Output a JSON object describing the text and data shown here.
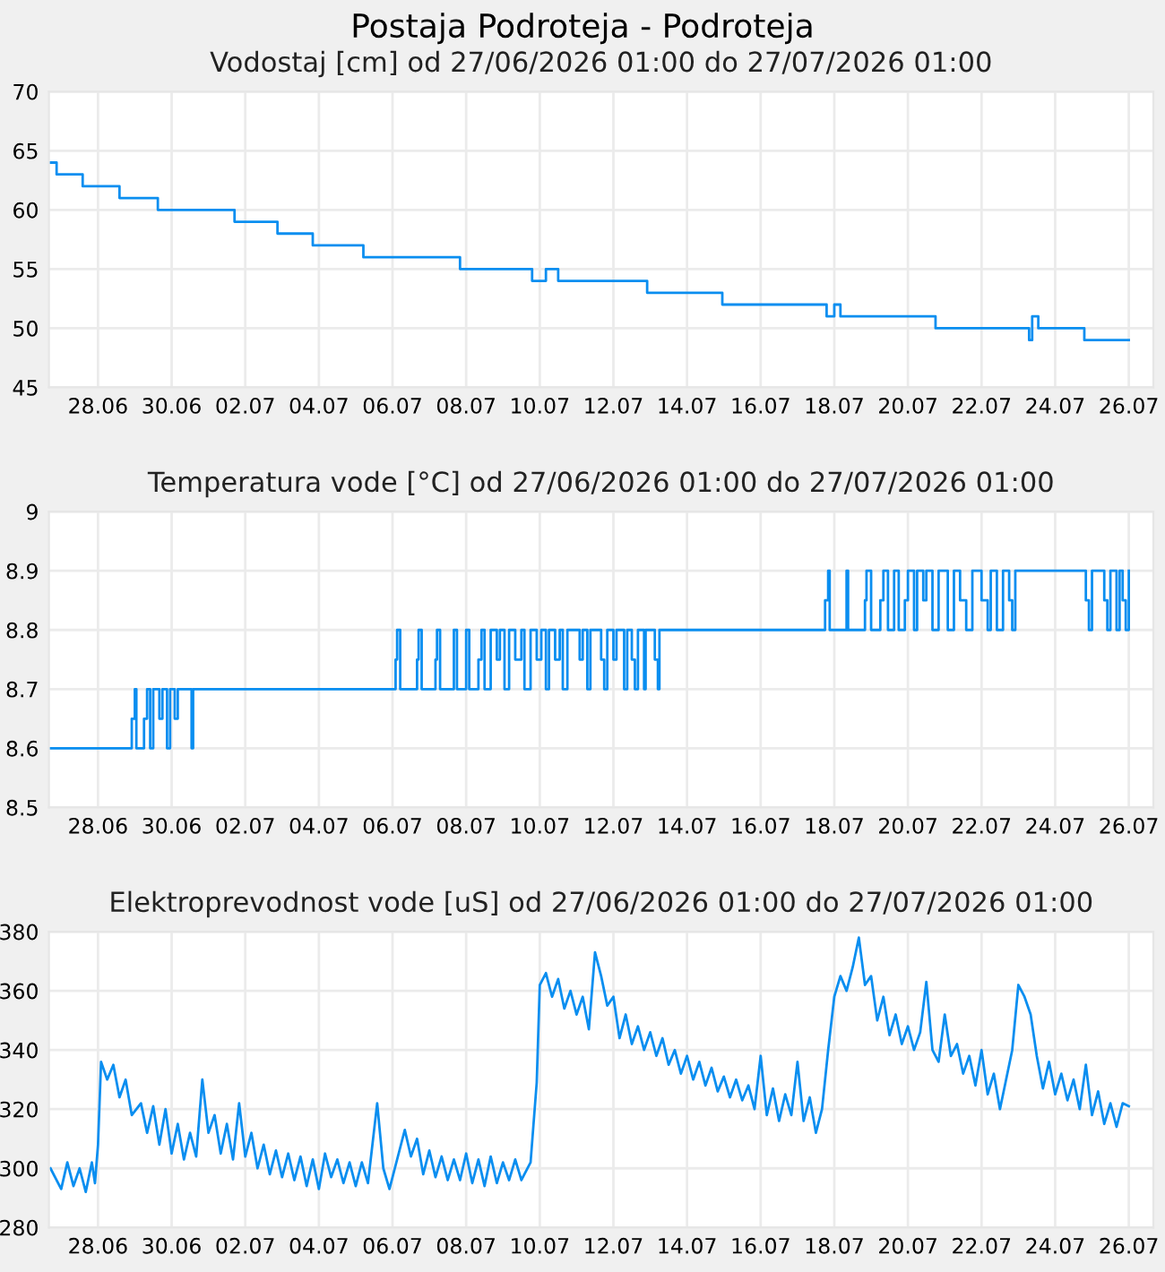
{
  "chart_data": [
    {
      "type": "step",
      "title": "Postaja Podroteja - Podroteja",
      "subtitle": "Vodostaj [cm] od 27/06/2026 01:00 do 27/07/2026 01:00",
      "grid": true,
      "xlim": [
        "2026-06-26T16:00",
        "2026-07-26T16:00"
      ],
      "ylim": [
        45,
        70
      ],
      "yticks": [
        45,
        50,
        55,
        60,
        65,
        70
      ],
      "xticks": [
        {
          "value": "2026-06-28",
          "label": "28.06"
        },
        {
          "value": "2026-06-30",
          "label": "30.06"
        },
        {
          "value": "2026-07-02",
          "label": "02.07"
        },
        {
          "value": "2026-07-04",
          "label": "04.07"
        },
        {
          "value": "2026-07-06",
          "label": "06.07"
        },
        {
          "value": "2026-07-08",
          "label": "08.07"
        },
        {
          "value": "2026-07-10",
          "label": "10.07"
        },
        {
          "value": "2026-07-12",
          "label": "12.07"
        },
        {
          "value": "2026-07-14",
          "label": "14.07"
        },
        {
          "value": "2026-07-16",
          "label": "16.07"
        },
        {
          "value": "2026-07-18",
          "label": "18.07"
        },
        {
          "value": "2026-07-20",
          "label": "20.07"
        },
        {
          "value": "2026-07-22",
          "label": "22.07"
        },
        {
          "value": "2026-07-24",
          "label": "24.07"
        },
        {
          "value": "2026-07-26",
          "label": "26.07"
        }
      ],
      "series": [
        {
          "color": "#0a8ef0",
          "x": [
            "2026-06-26T17:00",
            "2026-06-26T21:00",
            "2026-06-27T14:00",
            "2026-06-28T14:00",
            "2026-06-29T15:00",
            "2026-07-01T17:00",
            "2026-07-02T21:00",
            "2026-07-03T20:00",
            "2026-07-05T05:00",
            "2026-07-07T20:00",
            "2026-07-09T19:00",
            "2026-07-10T04:00",
            "2026-07-10T12:00",
            "2026-07-12T22:00",
            "2026-07-14T23:00",
            "2026-07-17T19:00",
            "2026-07-18T00:00",
            "2026-07-18T04:00",
            "2026-07-20T18:00",
            "2026-07-23T07:00",
            "2026-07-23T09:00",
            "2026-07-23T13:00",
            "2026-07-24T19:00",
            "2026-07-26T00:00"
          ],
          "values": [
            64,
            63,
            62,
            61,
            60,
            59,
            58,
            57,
            56,
            55,
            54,
            55,
            54,
            53,
            52,
            51,
            52,
            51,
            50,
            49,
            51,
            50,
            49,
            49
          ]
        }
      ]
    },
    {
      "type": "step",
      "subtitle": "Temperatura vode [°C] od 27/06/2026 01:00 do 27/07/2026 01:00",
      "grid": true,
      "xlim": [
        "2026-06-26T16:00",
        "2026-07-26T16:00"
      ],
      "ylim": [
        8.5,
        9
      ],
      "yticks": [
        8.5,
        8.6,
        8.7,
        8.8,
        8.9,
        {
          "value": 9,
          "label": "9"
        }
      ],
      "xticks": [
        {
          "value": "2026-06-28",
          "label": "28.06"
        },
        {
          "value": "2026-06-30",
          "label": "30.06"
        },
        {
          "value": "2026-07-02",
          "label": "02.07"
        },
        {
          "value": "2026-07-04",
          "label": "04.07"
        },
        {
          "value": "2026-07-06",
          "label": "06.07"
        },
        {
          "value": "2026-07-08",
          "label": "08.07"
        },
        {
          "value": "2026-07-10",
          "label": "10.07"
        },
        {
          "value": "2026-07-12",
          "label": "12.07"
        },
        {
          "value": "2026-07-14",
          "label": "14.07"
        },
        {
          "value": "2026-07-16",
          "label": "16.07"
        },
        {
          "value": "2026-07-18",
          "label": "18.07"
        },
        {
          "value": "2026-07-20",
          "label": "20.07"
        },
        {
          "value": "2026-07-22",
          "label": "22.07"
        },
        {
          "value": "2026-07-24",
          "label": "24.07"
        },
        {
          "value": "2026-07-26",
          "label": "26.07"
        }
      ],
      "series": [
        {
          "color": "#0a8ef0",
          "x": [
            "2026-06-26T17:00",
            "2026-06-28T22:00",
            "2026-06-29T00:00",
            "2026-06-29T01:00",
            "2026-06-29T06:00",
            "2026-06-29T08:00",
            "2026-06-29T10:00",
            "2026-06-29T12:00",
            "2026-06-29T16:00",
            "2026-06-29T18:00",
            "2026-06-29T21:00",
            "2026-06-29T23:00",
            "2026-06-30T02:00",
            "2026-06-30T04:00",
            "2026-06-30T13:00",
            "2026-06-30T14:00",
            "2026-07-06T02:00",
            "2026-07-06T03:00",
            "2026-07-06T05:00",
            "2026-07-06T16:00",
            "2026-07-06T17:00",
            "2026-07-06T19:00",
            "2026-07-07T04:00",
            "2026-07-07T05:00",
            "2026-07-07T07:00",
            "2026-07-07T16:00",
            "2026-07-07T18:00",
            "2026-07-08T00:00",
            "2026-07-08T02:00",
            "2026-07-08T08:00",
            "2026-07-08T10:00",
            "2026-07-08T12:00",
            "2026-07-08T16:00",
            "2026-07-08T20:00",
            "2026-07-08T22:00",
            "2026-07-09T01:00",
            "2026-07-09T04:00",
            "2026-07-09T08:00",
            "2026-07-09T12:00",
            "2026-07-09T14:00",
            "2026-07-09T18:00",
            "2026-07-09T22:00",
            "2026-07-10T01:00",
            "2026-07-10T04:00",
            "2026-07-10T06:00",
            "2026-07-10T10:00",
            "2026-07-10T13:00",
            "2026-07-10T15:00",
            "2026-07-10T18:00",
            "2026-07-11T02:00",
            "2026-07-11T04:00",
            "2026-07-11T07:00",
            "2026-07-11T09:00",
            "2026-07-11T16:00",
            "2026-07-11T18:00",
            "2026-07-11T20:00",
            "2026-07-12T00:00",
            "2026-07-12T02:00",
            "2026-07-12T07:00",
            "2026-07-12T09:00",
            "2026-07-12T12:00",
            "2026-07-12T14:00",
            "2026-07-12T16:00",
            "2026-07-12T20:00",
            "2026-07-12T21:00",
            "2026-07-13T03:00",
            "2026-07-13T05:00",
            "2026-07-13T06:00",
            "2026-07-17T18:00",
            "2026-07-17T20:00",
            "2026-07-17T21:00",
            "2026-07-18T08:00",
            "2026-07-18T09:00",
            "2026-07-18T20:00",
            "2026-07-18T21:00",
            "2026-07-19T00:00",
            "2026-07-19T06:00",
            "2026-07-19T08:00",
            "2026-07-19T11:00",
            "2026-07-19T15:00",
            "2026-07-19T18:00",
            "2026-07-19T22:00",
            "2026-07-20T00:00",
            "2026-07-20T04:00",
            "2026-07-20T06:00",
            "2026-07-20T10:00",
            "2026-07-20T12:00",
            "2026-07-20T16:00",
            "2026-07-20T20:00",
            "2026-07-21T02:00",
            "2026-07-21T06:00",
            "2026-07-21T10:00",
            "2026-07-21T14:00",
            "2026-07-21T18:00",
            "2026-07-22T00:00",
            "2026-07-22T04:00",
            "2026-07-22T06:00",
            "2026-07-22T10:00",
            "2026-07-22T14:00",
            "2026-07-22T18:00",
            "2026-07-22T20:00",
            "2026-07-22T22:00",
            "2026-07-24T20:00",
            "2026-07-24T22:00",
            "2026-07-25T00:00",
            "2026-07-25T08:00",
            "2026-07-25T10:00",
            "2026-07-25T12:00",
            "2026-07-25T16:00",
            "2026-07-25T18:00",
            "2026-07-25T20:00",
            "2026-07-25T22:00",
            "2026-07-26T00:00"
          ],
          "values": [
            8.6,
            8.65,
            8.7,
            8.6,
            8.65,
            8.7,
            8.6,
            8.7,
            8.65,
            8.7,
            8.6,
            8.7,
            8.65,
            8.7,
            8.6,
            8.7,
            8.75,
            8.8,
            8.7,
            8.75,
            8.8,
            8.7,
            8.75,
            8.8,
            8.7,
            8.8,
            8.7,
            8.8,
            8.7,
            8.75,
            8.8,
            8.7,
            8.8,
            8.75,
            8.8,
            8.7,
            8.8,
            8.75,
            8.8,
            8.7,
            8.8,
            8.75,
            8.8,
            8.7,
            8.8,
            8.75,
            8.8,
            8.7,
            8.8,
            8.75,
            8.8,
            8.7,
            8.8,
            8.75,
            8.7,
            8.8,
            8.75,
            8.8,
            8.7,
            8.8,
            8.75,
            8.7,
            8.8,
            8.7,
            8.8,
            8.75,
            8.7,
            8.8,
            8.85,
            8.9,
            8.8,
            8.9,
            8.8,
            8.85,
            8.9,
            8.8,
            8.85,
            8.9,
            8.8,
            8.9,
            8.8,
            8.85,
            8.9,
            8.8,
            8.9,
            8.85,
            8.9,
            8.8,
            8.9,
            8.8,
            8.9,
            8.85,
            8.8,
            8.9,
            8.85,
            8.8,
            8.9,
            8.8,
            8.9,
            8.85,
            8.8,
            8.9,
            8.85,
            8.8,
            8.9,
            8.85,
            8.8,
            8.9,
            8.8,
            8.9,
            8.85,
            8.8,
            8.9
          ]
        }
      ]
    },
    {
      "type": "line",
      "subtitle": "Elektroprevodnost vode [uS] od 27/06/2026 01:00 do 27/07/2026 01:00",
      "grid": true,
      "xlim": [
        "2026-06-26T16:00",
        "2026-07-26T16:00"
      ],
      "ylim": [
        280,
        380
      ],
      "yticks": [
        280,
        300,
        320,
        340,
        360,
        380
      ],
      "xticks": [
        {
          "value": "2026-06-28",
          "label": "28.06"
        },
        {
          "value": "2026-06-30",
          "label": "30.06"
        },
        {
          "value": "2026-07-02",
          "label": "02.07"
        },
        {
          "value": "2026-07-04",
          "label": "04.07"
        },
        {
          "value": "2026-07-06",
          "label": "06.07"
        },
        {
          "value": "2026-07-08",
          "label": "08.07"
        },
        {
          "value": "2026-07-10",
          "label": "10.07"
        },
        {
          "value": "2026-07-12",
          "label": "12.07"
        },
        {
          "value": "2026-07-14",
          "label": "14.07"
        },
        {
          "value": "2026-07-16",
          "label": "16.07"
        },
        {
          "value": "2026-07-18",
          "label": "18.07"
        },
        {
          "value": "2026-07-20",
          "label": "20.07"
        },
        {
          "value": "2026-07-22",
          "label": "22.07"
        },
        {
          "value": "2026-07-24",
          "label": "24.07"
        },
        {
          "value": "2026-07-26",
          "label": "26.07"
        }
      ],
      "series": [
        {
          "color": "#0a8ef0",
          "x": [
            "2026-06-26T17:00",
            "2026-06-27T00:00",
            "2026-06-27T04:00",
            "2026-06-27T08:00",
            "2026-06-27T12:00",
            "2026-06-27T16:00",
            "2026-06-27T20:00",
            "2026-06-27T22:00",
            "2026-06-28T00:00",
            "2026-06-28T02:00",
            "2026-06-28T06:00",
            "2026-06-28T10:00",
            "2026-06-28T14:00",
            "2026-06-28T18:00",
            "2026-06-28T22:00",
            "2026-06-29T04:00",
            "2026-06-29T08:00",
            "2026-06-29T12:00",
            "2026-06-29T16:00",
            "2026-06-29T20:00",
            "2026-06-30T00:00",
            "2026-06-30T04:00",
            "2026-06-30T08:00",
            "2026-06-30T12:00",
            "2026-06-30T16:00",
            "2026-06-30T20:00",
            "2026-07-01T00:00",
            "2026-07-01T04:00",
            "2026-07-01T08:00",
            "2026-07-01T12:00",
            "2026-07-01T16:00",
            "2026-07-01T20:00",
            "2026-07-02T00:00",
            "2026-07-02T04:00",
            "2026-07-02T08:00",
            "2026-07-02T12:00",
            "2026-07-02T16:00",
            "2026-07-02T20:00",
            "2026-07-03T00:00",
            "2026-07-03T04:00",
            "2026-07-03T08:00",
            "2026-07-03T12:00",
            "2026-07-03T16:00",
            "2026-07-03T20:00",
            "2026-07-04T00:00",
            "2026-07-04T04:00",
            "2026-07-04T08:00",
            "2026-07-04T12:00",
            "2026-07-04T16:00",
            "2026-07-04T20:00",
            "2026-07-05T00:00",
            "2026-07-05T04:00",
            "2026-07-05T08:00",
            "2026-07-05T14:00",
            "2026-07-05T18:00",
            "2026-07-05T22:00",
            "2026-07-06T04:00",
            "2026-07-06T08:00",
            "2026-07-06T12:00",
            "2026-07-06T16:00",
            "2026-07-06T20:00",
            "2026-07-07T00:00",
            "2026-07-07T04:00",
            "2026-07-07T08:00",
            "2026-07-07T12:00",
            "2026-07-07T16:00",
            "2026-07-07T20:00",
            "2026-07-08T00:00",
            "2026-07-08T04:00",
            "2026-07-08T08:00",
            "2026-07-08T12:00",
            "2026-07-08T16:00",
            "2026-07-08T20:00",
            "2026-07-09T00:00",
            "2026-07-09T04:00",
            "2026-07-09T08:00",
            "2026-07-09T12:00",
            "2026-07-09T18:00",
            "2026-07-09T22:00",
            "2026-07-10T00:00",
            "2026-07-10T04:00",
            "2026-07-10T08:00",
            "2026-07-10T12:00",
            "2026-07-10T16:00",
            "2026-07-10T20:00",
            "2026-07-11T00:00",
            "2026-07-11T04:00",
            "2026-07-11T08:00",
            "2026-07-11T12:00",
            "2026-07-11T16:00",
            "2026-07-11T20:00",
            "2026-07-12T00:00",
            "2026-07-12T04:00",
            "2026-07-12T08:00",
            "2026-07-12T12:00",
            "2026-07-12T16:00",
            "2026-07-12T20:00",
            "2026-07-13T00:00",
            "2026-07-13T04:00",
            "2026-07-13T08:00",
            "2026-07-13T12:00",
            "2026-07-13T16:00",
            "2026-07-13T20:00",
            "2026-07-14T00:00",
            "2026-07-14T04:00",
            "2026-07-14T08:00",
            "2026-07-14T12:00",
            "2026-07-14T16:00",
            "2026-07-14T20:00",
            "2026-07-15T00:00",
            "2026-07-15T04:00",
            "2026-07-15T08:00",
            "2026-07-15T12:00",
            "2026-07-15T16:00",
            "2026-07-15T20:00",
            "2026-07-16T00:00",
            "2026-07-16T04:00",
            "2026-07-16T08:00",
            "2026-07-16T12:00",
            "2026-07-16T16:00",
            "2026-07-16T20:00",
            "2026-07-17T00:00",
            "2026-07-17T04:00",
            "2026-07-17T08:00",
            "2026-07-17T12:00",
            "2026-07-17T16:00",
            "2026-07-17T20:00",
            "2026-07-18T00:00",
            "2026-07-18T04:00",
            "2026-07-18T08:00",
            "2026-07-18T12:00",
            "2026-07-18T16:00",
            "2026-07-18T20:00",
            "2026-07-19T00:00",
            "2026-07-19T04:00",
            "2026-07-19T08:00",
            "2026-07-19T12:00",
            "2026-07-19T16:00",
            "2026-07-19T20:00",
            "2026-07-20T00:00",
            "2026-07-20T04:00",
            "2026-07-20T08:00",
            "2026-07-20T12:00",
            "2026-07-20T16:00",
            "2026-07-20T20:00",
            "2026-07-21T00:00",
            "2026-07-21T04:00",
            "2026-07-21T08:00",
            "2026-07-21T12:00",
            "2026-07-21T16:00",
            "2026-07-21T20:00",
            "2026-07-22T00:00",
            "2026-07-22T04:00",
            "2026-07-22T08:00",
            "2026-07-22T12:00",
            "2026-07-22T16:00",
            "2026-07-22T20:00",
            "2026-07-23T00:00",
            "2026-07-23T04:00",
            "2026-07-23T08:00",
            "2026-07-23T12:00",
            "2026-07-23T16:00",
            "2026-07-23T20:00",
            "2026-07-24T00:00",
            "2026-07-24T04:00",
            "2026-07-24T08:00",
            "2026-07-24T12:00",
            "2026-07-24T16:00",
            "2026-07-24T20:00",
            "2026-07-25T00:00",
            "2026-07-25T04:00",
            "2026-07-25T08:00",
            "2026-07-25T12:00",
            "2026-07-25T16:00",
            "2026-07-25T20:00",
            "2026-07-26T00:00"
          ],
          "values": [
            300,
            293,
            302,
            294,
            300,
            292,
            302,
            295,
            308,
            336,
            330,
            335,
            324,
            330,
            318,
            322,
            312,
            321,
            308,
            320,
            305,
            315,
            303,
            312,
            304,
            330,
            312,
            318,
            305,
            315,
            303,
            322,
            304,
            312,
            300,
            308,
            298,
            306,
            297,
            305,
            296,
            304,
            294,
            303,
            293,
            305,
            297,
            303,
            295,
            302,
            294,
            302,
            295,
            322,
            300,
            293,
            305,
            313,
            304,
            310,
            298,
            306,
            297,
            304,
            296,
            303,
            296,
            305,
            295,
            303,
            294,
            304,
            295,
            302,
            296,
            303,
            296,
            302,
            329,
            362,
            366,
            358,
            364,
            354,
            360,
            352,
            358,
            347,
            373,
            365,
            355,
            358,
            344,
            352,
            342,
            348,
            340,
            346,
            338,
            344,
            335,
            340,
            332,
            338,
            330,
            336,
            328,
            334,
            326,
            331,
            324,
            330,
            323,
            328,
            320,
            338,
            318,
            327,
            316,
            325,
            318,
            336,
            316,
            324,
            312,
            320,
            340,
            358,
            365,
            360,
            368,
            378,
            362,
            365,
            350,
            358,
            345,
            352,
            342,
            348,
            340,
            346,
            363,
            340,
            336,
            352,
            338,
            342,
            332,
            338,
            328,
            340,
            325,
            332,
            320,
            330,
            340,
            362,
            358,
            352,
            338,
            327,
            336,
            325,
            332,
            323,
            330,
            320,
            335,
            318,
            326,
            315,
            322,
            314,
            322,
            321
          ]
        }
      ]
    }
  ]
}
